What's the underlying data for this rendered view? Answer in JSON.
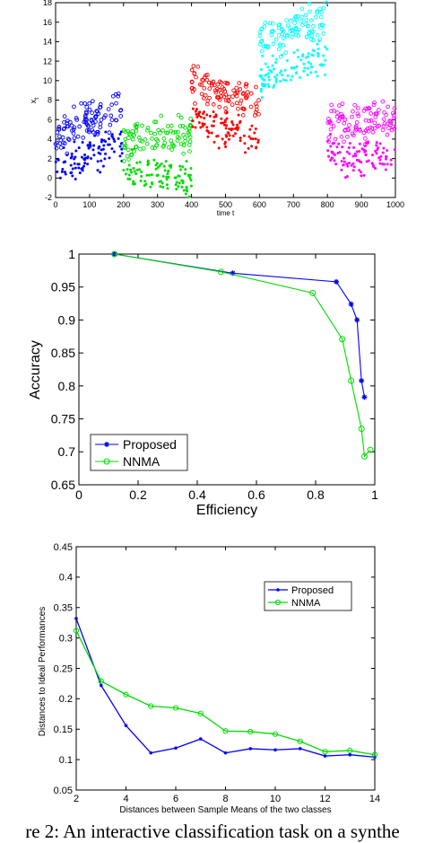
{
  "chart_data": [
    {
      "type": "scatter",
      "title": "",
      "xlabel": "time t",
      "ylabel": "x",
      "ylabel_subscript": "t",
      "xlim": [
        0,
        1000
      ],
      "ylim": [
        -2,
        18
      ],
      "xticks": [
        0,
        100,
        200,
        300,
        400,
        500,
        600,
        700,
        800,
        900,
        1000
      ],
      "yticks": [
        -2,
        0,
        2,
        4,
        6,
        8,
        10,
        12,
        14,
        16,
        18
      ],
      "grid": false,
      "series": [
        {
          "color": "#0000ff",
          "x_range": [
            0,
            200
          ],
          "y_trend": [
            4.5,
            7.5
          ],
          "marker": "circle-open",
          "points": 100
        },
        {
          "color": "#0000ff",
          "x_range": [
            0,
            200
          ],
          "y_trend": [
            1.0,
            4.0
          ],
          "marker": "dot-filled",
          "points": 100
        },
        {
          "color": "#00dd00",
          "x_range": [
            200,
            400
          ],
          "y_trend": [
            4.0,
            4.5
          ],
          "marker": "circle-open",
          "points": 100
        },
        {
          "color": "#00dd00",
          "x_range": [
            200,
            400
          ],
          "y_trend": [
            1.0,
            0.0
          ],
          "marker": "dot-filled",
          "points": 100
        },
        {
          "color": "#ff0000",
          "x_range": [
            400,
            600
          ],
          "y_trend": [
            10.0,
            7.5
          ],
          "marker": "circle-open",
          "points": 100
        },
        {
          "color": "#ff0000",
          "x_range": [
            400,
            600
          ],
          "y_trend": [
            6.0,
            4.0
          ],
          "marker": "dot-filled",
          "points": 100
        },
        {
          "color": "#00ffff",
          "x_range": [
            600,
            800
          ],
          "y_trend": [
            14.0,
            16.5
          ],
          "marker": "circle-open",
          "points": 100
        },
        {
          "color": "#00ffff",
          "x_range": [
            600,
            800
          ],
          "y_trend": [
            10.0,
            12.5
          ],
          "marker": "dot-filled",
          "points": 100
        },
        {
          "color": "#ff00ff",
          "x_range": [
            800,
            1000
          ],
          "y_trend": [
            5.5,
            6.0
          ],
          "marker": "circle-open",
          "points": 100
        },
        {
          "color": "#ff00ff",
          "x_range": [
            800,
            1000
          ],
          "y_trend": [
            2.5,
            2.0
          ],
          "marker": "dot-filled",
          "points": 100
        }
      ]
    },
    {
      "type": "line",
      "title": "",
      "xlabel": "Efficiency",
      "ylabel": "Accuracy",
      "xlim": [
        0,
        1
      ],
      "ylim": [
        0.65,
        1
      ],
      "xticks": [
        "0",
        "0.2",
        "0.4",
        "0.6",
        "0.8",
        "1"
      ],
      "yticks": [
        "0.65",
        "0.7",
        "0.75",
        "0.8",
        "0.85",
        "0.9",
        "0.95",
        "1"
      ],
      "grid": false,
      "legend_position": "bottom-left",
      "series": [
        {
          "name": "Proposed",
          "color": "#0000ff",
          "marker": "star",
          "x": [
            0.12,
            0.52,
            0.87,
            0.92,
            0.94,
            0.955,
            0.965
          ],
          "y": [
            1.0,
            0.971,
            0.958,
            0.924,
            0.9,
            0.808,
            0.783
          ]
        },
        {
          "name": "NNMA",
          "color": "#00dd00",
          "marker": "circle-open",
          "x": [
            0.12,
            0.48,
            0.79,
            0.89,
            0.92,
            0.955,
            0.965,
            0.985
          ],
          "y": [
            1.0,
            0.973,
            0.941,
            0.871,
            0.808,
            0.735,
            0.693,
            0.703
          ]
        }
      ]
    },
    {
      "type": "line",
      "title": "",
      "xlabel": "Distances between Sample Means of the two classes",
      "ylabel": "Distances to Ideal Performances",
      "xlim": [
        2,
        14
      ],
      "ylim": [
        0.05,
        0.45
      ],
      "xticks": [
        "2",
        "4",
        "6",
        "8",
        "10",
        "12",
        "14"
      ],
      "yticks": [
        "0.05",
        "0.1",
        "0.15",
        "0.2",
        "0.25",
        "0.3",
        "0.35",
        "0.4",
        "0.45"
      ],
      "grid": false,
      "legend_position": "top-right",
      "series": [
        {
          "name": "Proposed",
          "color": "#0000ff",
          "marker": "dot",
          "x": [
            2,
            3,
            4,
            5,
            6,
            7,
            8,
            9,
            10,
            11,
            12,
            13,
            14
          ],
          "y": [
            0.332,
            0.222,
            0.156,
            0.111,
            0.119,
            0.134,
            0.111,
            0.118,
            0.116,
            0.118,
            0.106,
            0.108,
            0.104
          ]
        },
        {
          "name": "NNMA",
          "color": "#00dd00",
          "marker": "circle-open",
          "x": [
            2,
            3,
            4,
            5,
            6,
            7,
            8,
            9,
            10,
            11,
            12,
            13,
            14
          ],
          "y": [
            0.312,
            0.229,
            0.207,
            0.188,
            0.185,
            0.176,
            0.147,
            0.146,
            0.142,
            0.13,
            0.113,
            0.115,
            0.108
          ]
        }
      ]
    }
  ],
  "caption": "re 2:  An interactive classification task on a synthe"
}
